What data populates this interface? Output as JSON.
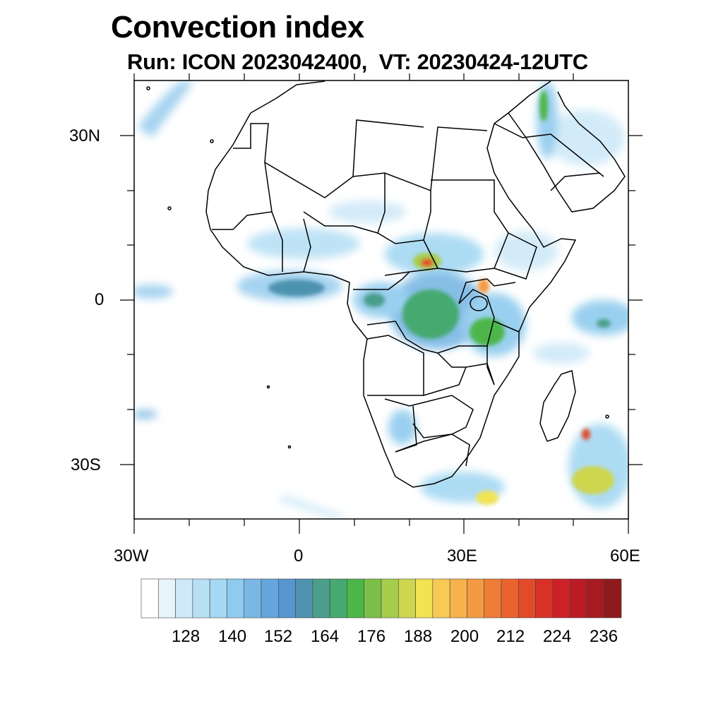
{
  "title": "Convection index",
  "subtitle": "Run: ICON 2023042400,  VT: 20230424-12UTC",
  "lat_labels": [
    "30N",
    "0",
    "30S"
  ],
  "lon_labels": [
    "30W",
    "0",
    "30E",
    "60E"
  ],
  "colorbar": {
    "tick_labels": [
      "128",
      "140",
      "152",
      "164",
      "176",
      "188",
      "200",
      "212",
      "224",
      "236"
    ],
    "colors": [
      "#ffffff",
      "#e8f4fb",
      "#cfe9f8",
      "#b8e0f5",
      "#a4d8f3",
      "#8fcbee",
      "#7ab7e4",
      "#66a6dc",
      "#5596cf",
      "#4e93b0",
      "#4a9e8a",
      "#45a970",
      "#4db64b",
      "#7cbf48",
      "#a6cd4c",
      "#cdd64e",
      "#f1e352",
      "#f7ca55",
      "#f6b24c",
      "#f39a42",
      "#ee7c37",
      "#e9632f",
      "#e24a2a",
      "#d93128",
      "#cc2126",
      "#b91c24",
      "#a61b22",
      "#8f1a1c"
    ]
  },
  "chart_data": {
    "type": "map",
    "title": "Convection index",
    "model": "ICON",
    "run": "2023042400",
    "valid_time": "20230424-12UTC",
    "lon_range": [
      -30,
      60
    ],
    "lat_range": [
      -40,
      40
    ],
    "colorbar_ticks": [
      128,
      140,
      152,
      164,
      176,
      188,
      200,
      212,
      224,
      236
    ]
  }
}
